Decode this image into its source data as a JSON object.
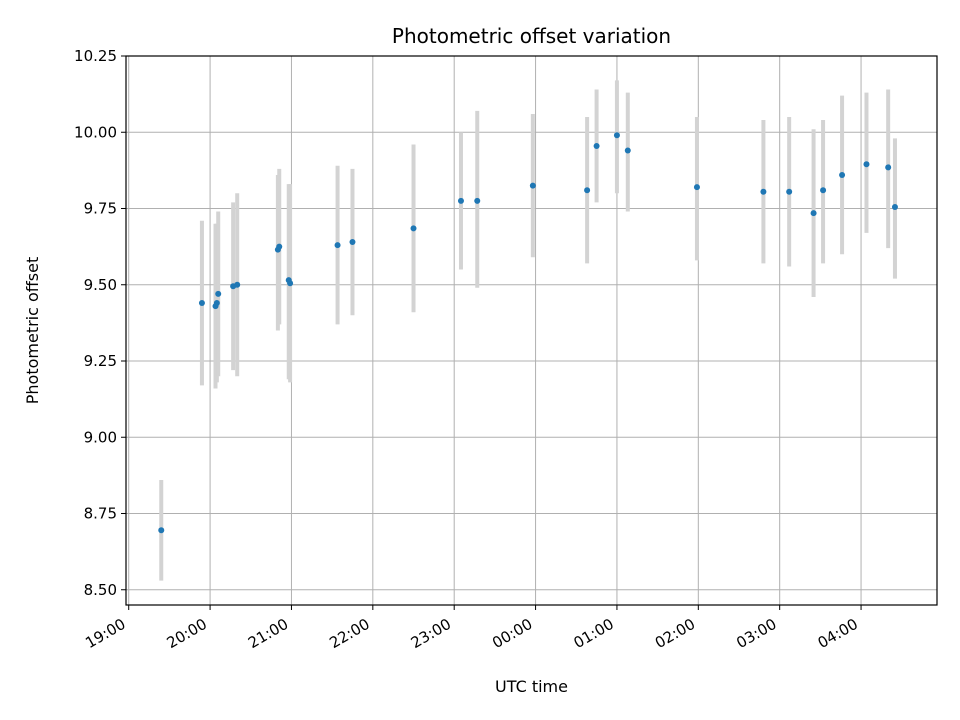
{
  "chart_data": {
    "type": "scatter",
    "title": "Photometric offset variation",
    "xlabel": "UTC time",
    "ylabel": "Photometric offset",
    "x_ticks": [
      "19:00",
      "20:00",
      "21:00",
      "22:00",
      "23:00",
      "00:00",
      "01:00",
      "02:00",
      "03:00",
      "04:00"
    ],
    "y_ticks": [
      "8.50",
      "8.75",
      "9.00",
      "9.25",
      "9.50",
      "9.75",
      "10.00",
      "10.25"
    ],
    "ylim": [
      8.45,
      10.25
    ],
    "xlim": [
      "18:58",
      "04:56"
    ],
    "grid": true,
    "colors": {
      "point": "#1f77b4",
      "errorbar": "#d3d3d3",
      "grid": "#b0b0b0"
    },
    "points": [
      {
        "x": "19:24",
        "y": 8.695,
        "low": 8.53,
        "high": 8.86
      },
      {
        "x": "19:54",
        "y": 9.44,
        "low": 9.17,
        "high": 9.71
      },
      {
        "x": "20:04",
        "y": 9.43,
        "low": 9.16,
        "high": 9.7
      },
      {
        "x": "20:05",
        "y": 9.44,
        "low": 9.18,
        "high": 9.7
      },
      {
        "x": "20:06",
        "y": 9.47,
        "low": 9.2,
        "high": 9.74
      },
      {
        "x": "20:17",
        "y": 9.495,
        "low": 9.22,
        "high": 9.77
      },
      {
        "x": "20:20",
        "y": 9.5,
        "low": 9.2,
        "high": 9.8
      },
      {
        "x": "20:50",
        "y": 9.615,
        "low": 9.35,
        "high": 9.86
      },
      {
        "x": "20:51",
        "y": 9.625,
        "low": 9.37,
        "high": 9.88
      },
      {
        "x": "20:58",
        "y": 9.515,
        "low": 9.19,
        "high": 9.83
      },
      {
        "x": "20:59",
        "y": 9.505,
        "low": 9.18,
        "high": 9.83
      },
      {
        "x": "21:34",
        "y": 9.63,
        "low": 9.37,
        "high": 9.89
      },
      {
        "x": "21:45",
        "y": 9.64,
        "low": 9.4,
        "high": 9.88
      },
      {
        "x": "22:30",
        "y": 9.685,
        "low": 9.41,
        "high": 9.96
      },
      {
        "x": "23:05",
        "y": 9.775,
        "low": 9.55,
        "high": 10.0
      },
      {
        "x": "23:17",
        "y": 9.775,
        "low": 9.49,
        "high": 10.07
      },
      {
        "x": "23:58",
        "y": 9.825,
        "low": 9.59,
        "high": 10.06
      },
      {
        "x": "00:38",
        "y": 9.81,
        "low": 9.57,
        "high": 10.05
      },
      {
        "x": "00:45",
        "y": 9.955,
        "low": 9.77,
        "high": 10.14
      },
      {
        "x": "01:00",
        "y": 9.99,
        "low": 9.8,
        "high": 10.17
      },
      {
        "x": "01:08",
        "y": 9.94,
        "low": 9.74,
        "high": 10.13
      },
      {
        "x": "01:59",
        "y": 9.82,
        "low": 9.58,
        "high": 10.05
      },
      {
        "x": "02:48",
        "y": 9.805,
        "low": 9.57,
        "high": 10.04
      },
      {
        "x": "03:07",
        "y": 9.805,
        "low": 9.56,
        "high": 10.05
      },
      {
        "x": "03:25",
        "y": 9.735,
        "low": 9.46,
        "high": 10.01
      },
      {
        "x": "03:32",
        "y": 9.81,
        "low": 9.57,
        "high": 10.04
      },
      {
        "x": "03:46",
        "y": 9.86,
        "low": 9.6,
        "high": 10.12
      },
      {
        "x": "04:04",
        "y": 9.895,
        "low": 9.67,
        "high": 10.13
      },
      {
        "x": "04:20",
        "y": 9.885,
        "low": 9.62,
        "high": 10.14
      },
      {
        "x": "04:25",
        "y": 9.755,
        "low": 9.52,
        "high": 9.98
      }
    ]
  }
}
